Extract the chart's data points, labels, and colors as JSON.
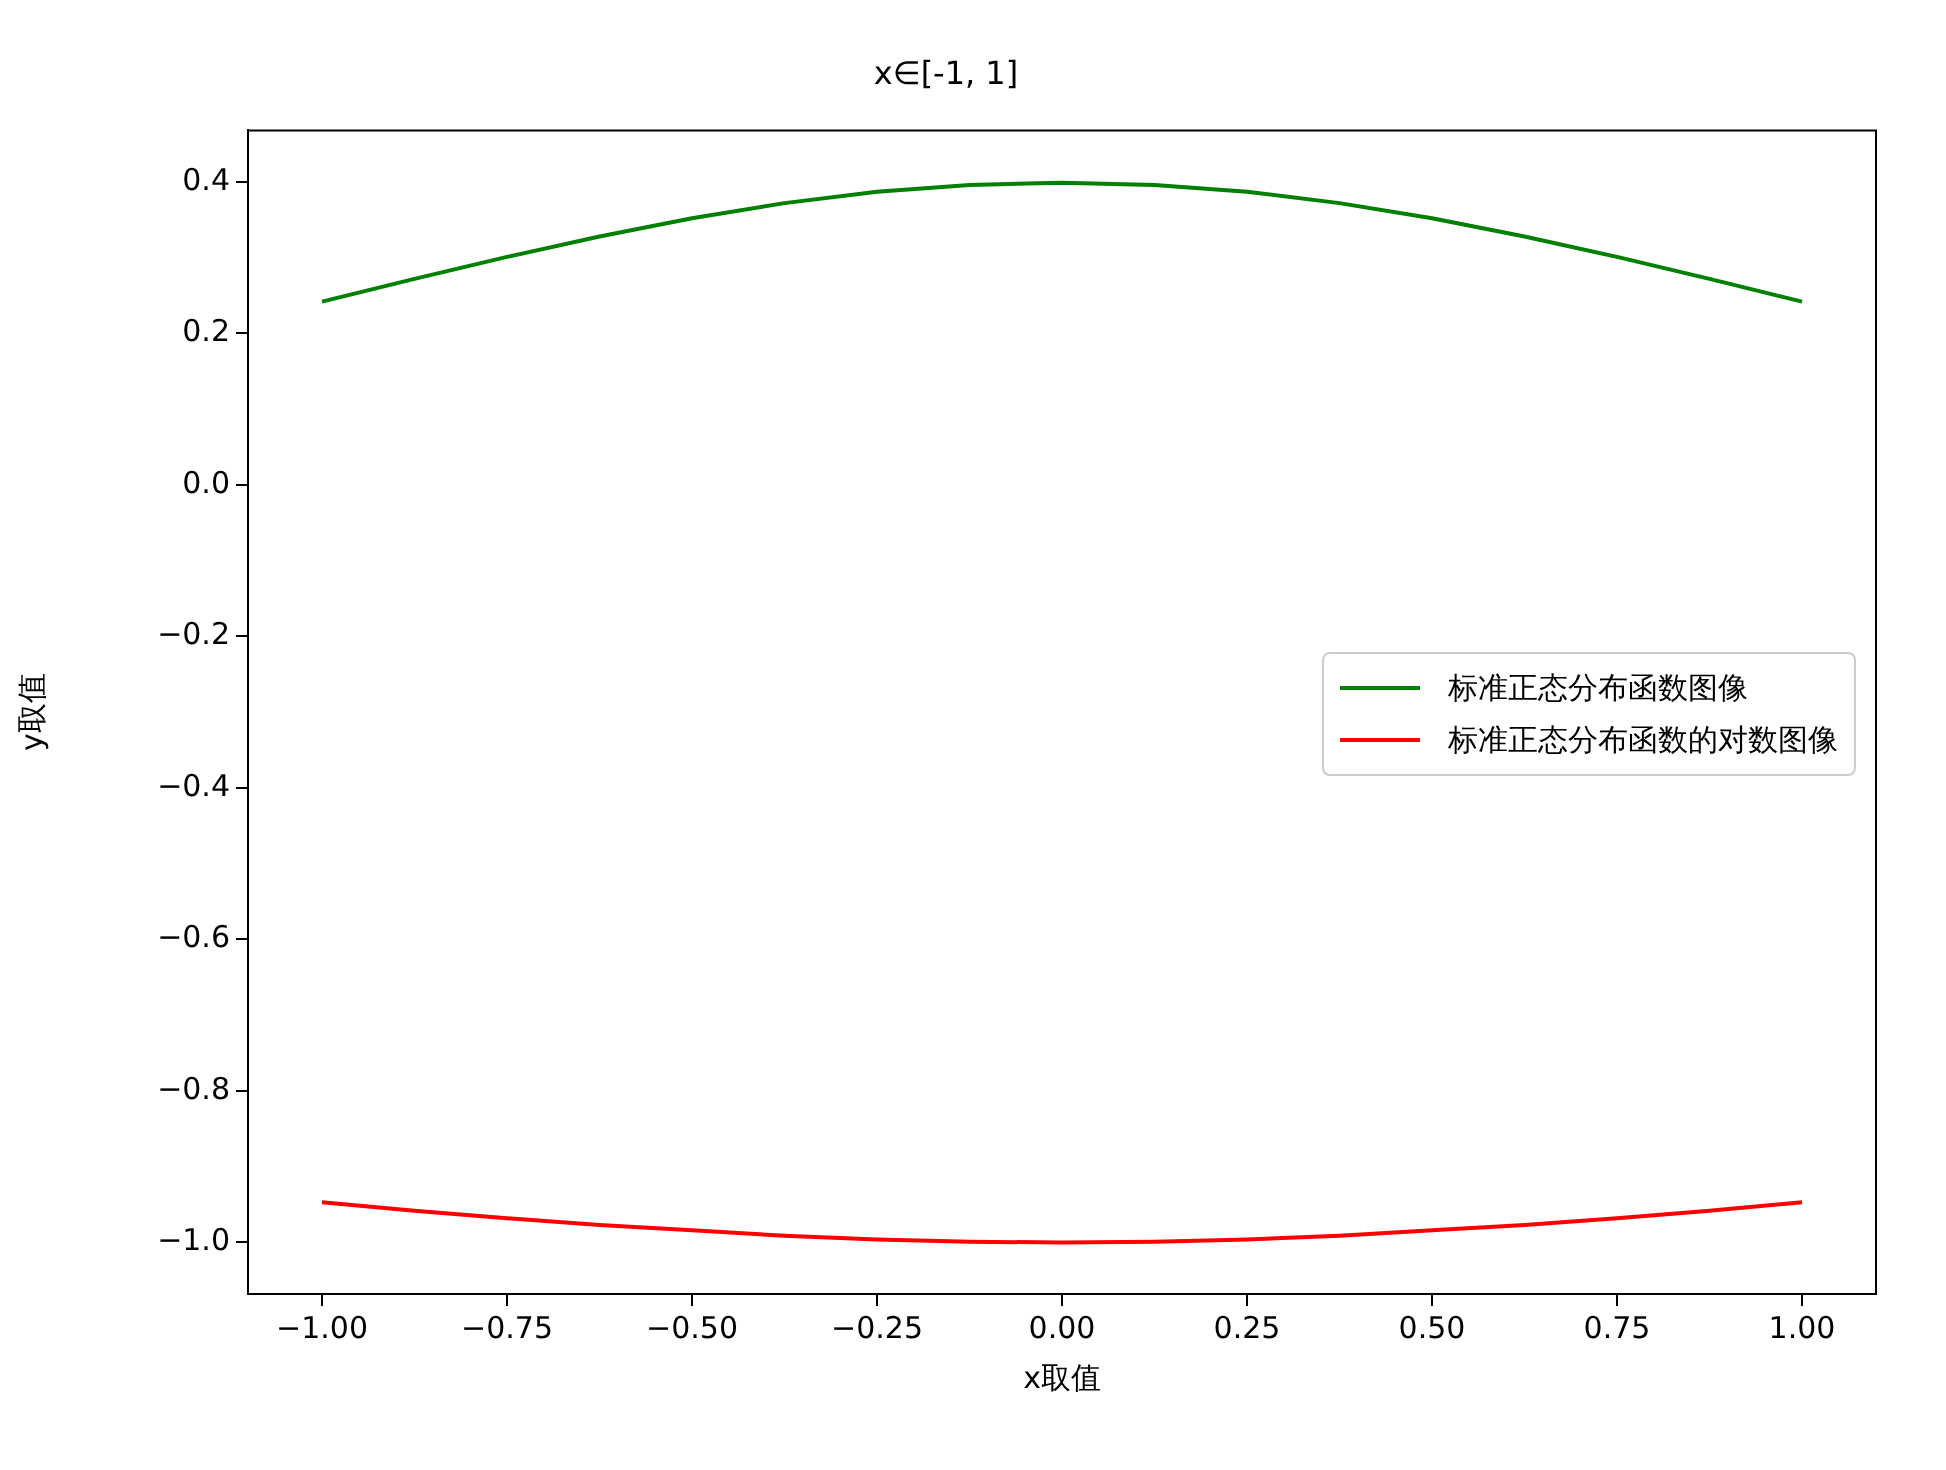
{
  "chart_data": {
    "type": "line",
    "title": "x∈[-1, 1]",
    "xlabel": "x取值",
    "ylabel": "y取值",
    "x": [
      -1,
      -0.875,
      -0.75,
      -0.625,
      -0.5,
      -0.375,
      -0.25,
      -0.125,
      0,
      0.125,
      0.25,
      0.375,
      0.5,
      0.625,
      0.75,
      0.875,
      1
    ],
    "series": [
      {
        "name": "标准正态分布函数图像",
        "color": "#008000",
        "values": [
          0.242,
          0.272,
          0.301,
          0.328,
          0.352,
          0.372,
          0.387,
          0.396,
          0.399,
          0.396,
          0.387,
          0.372,
          0.352,
          0.328,
          0.301,
          0.272,
          0.242
        ]
      },
      {
        "name": "标准正态分布函数的对数图像",
        "color": "#ff0000",
        "values": [
          -0.947,
          -0.958,
          -0.968,
          -0.977,
          -0.984,
          -0.991,
          -0.996,
          -0.999,
          -1.0,
          -0.999,
          -0.996,
          -0.991,
          -0.984,
          -0.977,
          -0.968,
          -0.958,
          -0.947
        ]
      }
    ],
    "xlim": [
      -1.1,
      1.1
    ],
    "ylim": [
      -1.068,
      0.468
    ],
    "xticks": [
      {
        "value": -1,
        "label": "−1.00"
      },
      {
        "value": -0.75,
        "label": "−0.75"
      },
      {
        "value": -0.5,
        "label": "−0.50"
      },
      {
        "value": -0.25,
        "label": "−0.25"
      },
      {
        "value": 0,
        "label": "0.00"
      },
      {
        "value": 0.25,
        "label": "0.25"
      },
      {
        "value": 0.5,
        "label": "0.50"
      },
      {
        "value": 0.75,
        "label": "0.75"
      },
      {
        "value": 1,
        "label": "1.00"
      }
    ],
    "yticks": [
      {
        "value": 0.4,
        "label": "0.4"
      },
      {
        "value": 0.2,
        "label": "0.2"
      },
      {
        "value": 0,
        "label": "0.0"
      },
      {
        "value": -0.2,
        "label": "−0.2"
      },
      {
        "value": -0.4,
        "label": "−0.4"
      },
      {
        "value": -0.6,
        "label": "−0.6"
      },
      {
        "value": -0.8,
        "label": "−0.8"
      },
      {
        "value": -1,
        "label": "−1.0"
      }
    ],
    "grid": false,
    "legend": "center right",
    "marker": "none",
    "line_style": "solid"
  }
}
